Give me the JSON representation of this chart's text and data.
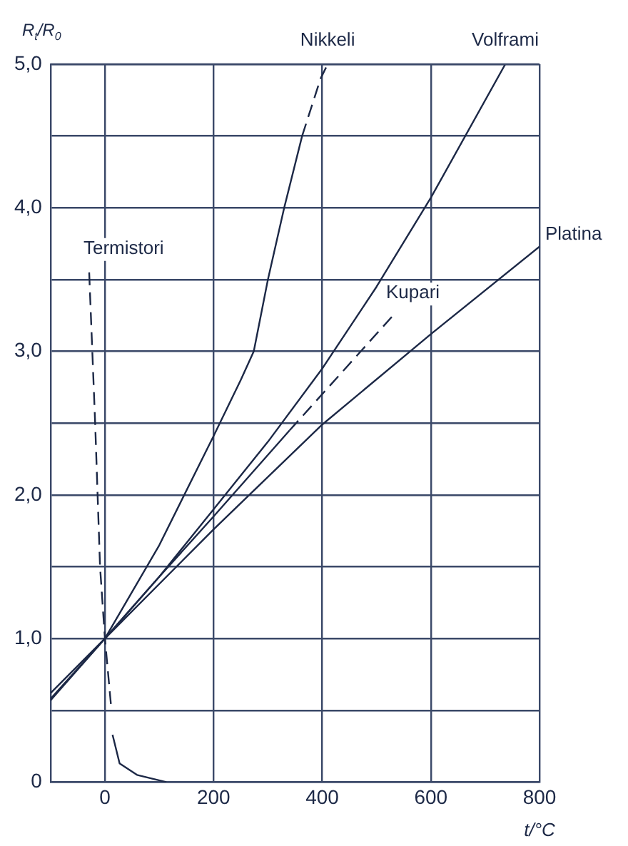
{
  "chart_data": {
    "type": "line",
    "xlabel": "t/°C",
    "ylabel": "R$_{t}$/R$_{0}$",
    "xlim": [
      -100,
      800
    ],
    "ylim": [
      0,
      5
    ],
    "xticks": [
      0,
      200,
      400,
      600,
      800
    ],
    "yticks": [
      {
        "value": 0,
        "label": "0"
      },
      {
        "value": 0.5,
        "label": null
      },
      {
        "value": 1,
        "label": "1,0"
      },
      {
        "value": 1.5,
        "label": null
      },
      {
        "value": 2,
        "label": "2,0"
      },
      {
        "value": 2.5,
        "label": null
      },
      {
        "value": 3,
        "label": "3,0"
      },
      {
        "value": 3.5,
        "label": null
      },
      {
        "value": 4,
        "label": "4,0"
      },
      {
        "value": 4.5,
        "label": null
      },
      {
        "value": 5,
        "label": "5,0"
      }
    ],
    "grid": true,
    "legend": false,
    "marker": "none",
    "series": [
      {
        "color": "#1c2846",
        "line_style": "solid",
        "x": [
          0,
          100,
          200,
          250,
          274,
          300,
          330,
          363
        ],
        "values": [
          1,
          1.65,
          2.41,
          2.8,
          3.0,
          3.5,
          4.0,
          4.5
        ]
      },
      {
        "name": "Nikkeli",
        "color": "#1c2846",
        "line_style": "dashed",
        "x": [
          363,
          397,
          410
        ],
        "values": [
          4.5,
          4.9,
          5.0
        ]
      },
      {
        "name": "Volframi",
        "color": "#1c2846",
        "line_style": "solid",
        "x": [
          -100,
          0,
          100,
          200,
          300,
          400,
          500,
          600,
          737
        ],
        "values": [
          0.58,
          1,
          1.43,
          1.9,
          2.37,
          2.88,
          3.45,
          4.07,
          5.0
        ]
      },
      {
        "color": "#1c2846",
        "line_style": "solid",
        "x": [
          -100,
          0,
          100,
          200,
          340
        ],
        "values": [
          0.57,
          1,
          1.43,
          1.85,
          2.45
        ]
      },
      {
        "name": "Kupari",
        "color": "#1c2846",
        "line_style": "dashed",
        "x": [
          340,
          440,
          528
        ],
        "values": [
          2.45,
          2.87,
          3.24
        ]
      },
      {
        "name": "Platina",
        "color": "#1c2846",
        "line_style": "solid",
        "x": [
          -100,
          0,
          200,
          400,
          600,
          800
        ],
        "values": [
          0.62,
          1,
          1.76,
          2.49,
          3.12,
          3.73
        ]
      },
      {
        "name": "Termistori",
        "color": "#1c2846",
        "line_style": "dashed",
        "x": [
          -29,
          -18,
          -9,
          0,
          12
        ],
        "values": [
          3.55,
          2.5,
          1.5,
          1,
          0.5
        ]
      },
      {
        "color": "#1c2846",
        "line_style": "solid",
        "x": [
          14,
          27,
          59,
          113
        ],
        "values": [
          0.33,
          0.13,
          0.05,
          0
        ]
      }
    ]
  }
}
